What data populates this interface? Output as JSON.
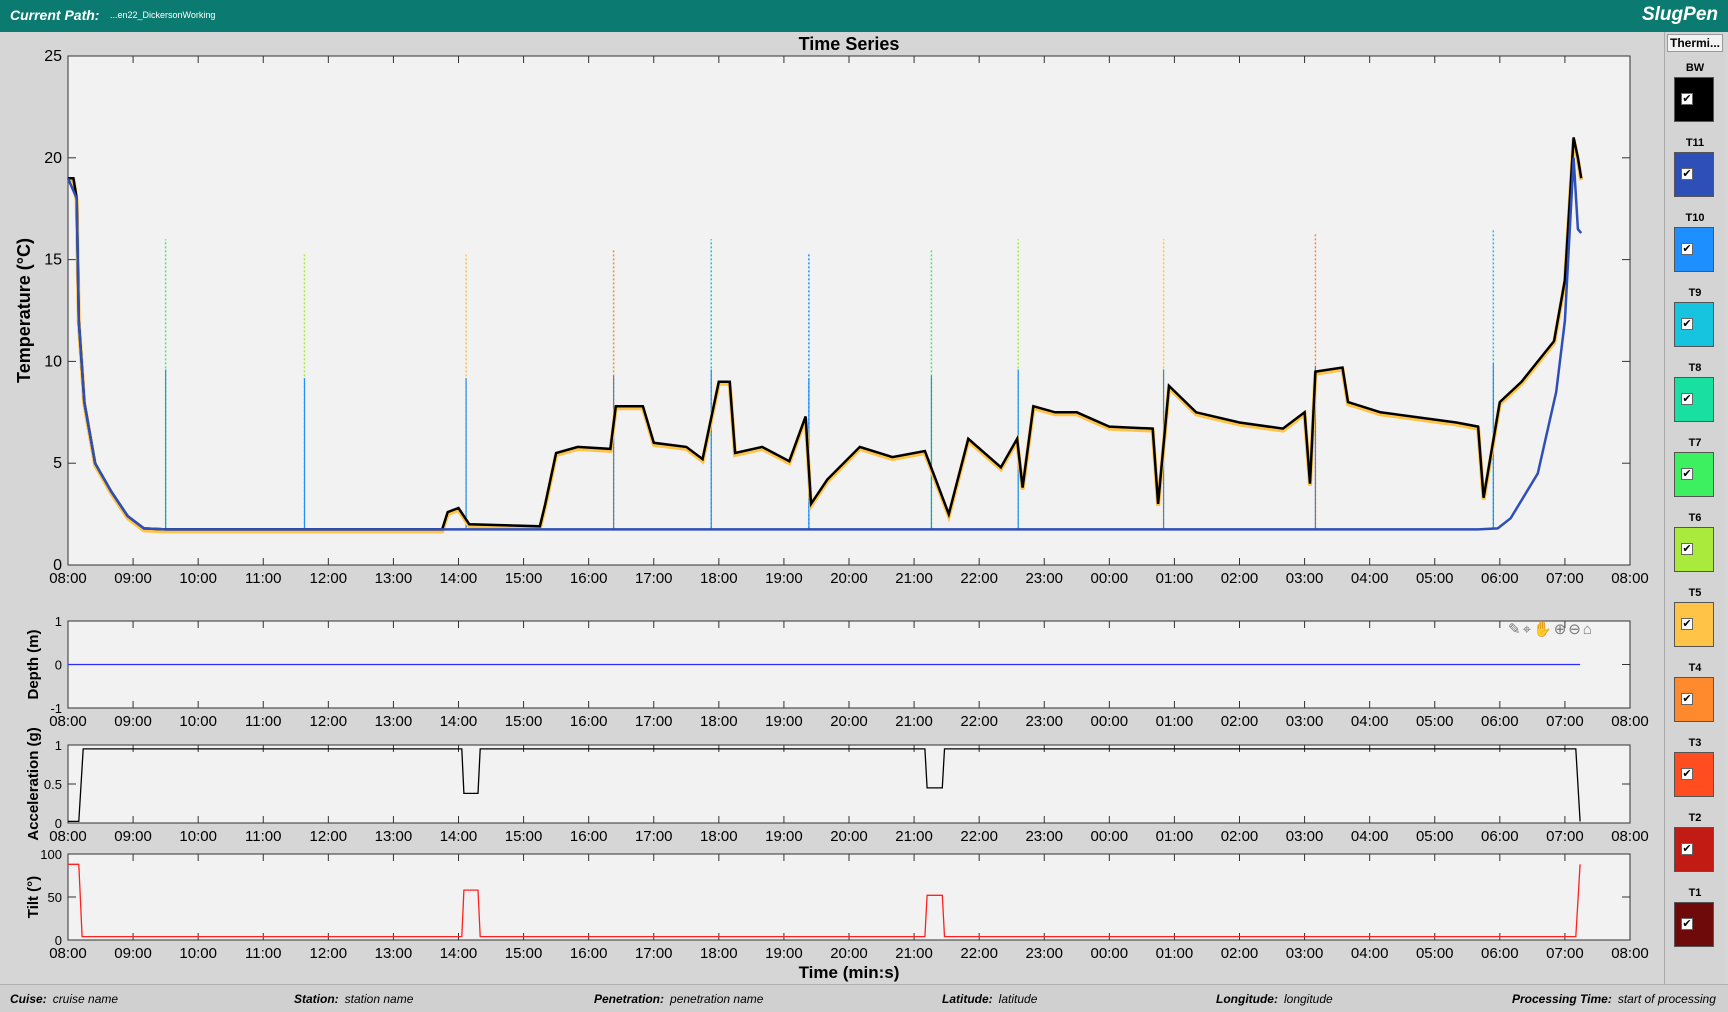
{
  "header": {
    "path_label": "Current Path:",
    "path_value": "...en22_DickersonWorking",
    "app_name": "SlugPen"
  },
  "legend": {
    "title": "Thermi...",
    "items": [
      {
        "name": "BW",
        "color": "#000000",
        "checked": true
      },
      {
        "name": "T11",
        "color": "#2e4fb8",
        "checked": true
      },
      {
        "name": "T10",
        "color": "#1e8fff",
        "checked": true
      },
      {
        "name": "T9",
        "color": "#16c4e0",
        "checked": true
      },
      {
        "name": "T8",
        "color": "#17e0a0",
        "checked": true
      },
      {
        "name": "T7",
        "color": "#3cf060",
        "checked": true
      },
      {
        "name": "T6",
        "color": "#a9ea3c",
        "checked": true
      },
      {
        "name": "T5",
        "color": "#ffc347",
        "checked": true
      },
      {
        "name": "T4",
        "color": "#ff8a2e",
        "checked": true
      },
      {
        "name": "T3",
        "color": "#ff4d1f",
        "checked": true
      },
      {
        "name": "T2",
        "color": "#c21b14",
        "checked": true
      },
      {
        "name": "T1",
        "color": "#6e0a0a",
        "checked": true
      }
    ]
  },
  "footer": {
    "cruise_label": "Cuise:",
    "cruise_value": "cruise name",
    "station_label": "Station:",
    "station_value": "station name",
    "penetration_label": "Penetration:",
    "penetration_value": "penetration name",
    "latitude_label": "Latitude:",
    "latitude_value": "latitude",
    "longitude_label": "Longitude:",
    "longitude_value": "longitude",
    "processing_label": "Processing Time:",
    "processing_value": "start of processing"
  },
  "chart_data": [
    {
      "type": "line",
      "title": "Time Series",
      "xlabel": "",
      "ylabel": "Temperature  (°C)",
      "xlim": [
        0,
        1440
      ],
      "ylim": [
        0,
        25
      ],
      "yticks": [
        0,
        5,
        10,
        15,
        20,
        25
      ],
      "xticklabels": [
        "08:00",
        "09:00",
        "10:00",
        "11:00",
        "12:00",
        "13:00",
        "14:00",
        "15:00",
        "16:00",
        "17:00",
        "18:00",
        "19:00",
        "20:00",
        "21:00",
        "22:00",
        "23:00",
        "00:00",
        "01:00",
        "02:00",
        "03:00",
        "04:00",
        "05:00",
        "06:00",
        "07:00",
        "08:00"
      ],
      "series": [
        {
          "name": "BW",
          "color": "#000000",
          "points": [
            [
              0,
              19
            ],
            [
              5,
              19
            ],
            [
              8,
              18
            ],
            [
              10,
              12
            ],
            [
              15,
              8
            ],
            [
              25,
              5
            ],
            [
              40,
              3.6
            ],
            [
              55,
              2.4
            ],
            [
              70,
              1.8
            ],
            [
              90,
              1.75
            ],
            [
              345,
              1.75
            ],
            [
              350,
              2.6
            ],
            [
              360,
              2.8
            ],
            [
              370,
              2.0
            ],
            [
              435,
              1.9
            ],
            [
              440,
              3
            ],
            [
              450,
              5.5
            ],
            [
              470,
              5.8
            ],
            [
              500,
              5.7
            ],
            [
              505,
              7.8
            ],
            [
              530,
              7.8
            ],
            [
              540,
              6.0
            ],
            [
              570,
              5.8
            ],
            [
              585,
              5.2
            ],
            [
              600,
              9.0
            ],
            [
              610,
              9.0
            ],
            [
              615,
              5.5
            ],
            [
              640,
              5.8
            ],
            [
              665,
              5.1
            ],
            [
              680,
              7.3
            ],
            [
              685,
              3.0
            ],
            [
              700,
              4.2
            ],
            [
              730,
              5.8
            ],
            [
              760,
              5.3
            ],
            [
              790,
              5.6
            ],
            [
              812,
              2.5
            ],
            [
              830,
              6.2
            ],
            [
              860,
              4.8
            ],
            [
              875,
              6.2
            ],
            [
              880,
              3.8
            ],
            [
              890,
              7.8
            ],
            [
              910,
              7.5
            ],
            [
              930,
              7.5
            ],
            [
              960,
              6.8
            ],
            [
              1000,
              6.7
            ],
            [
              1005,
              3.0
            ],
            [
              1015,
              8.8
            ],
            [
              1040,
              7.5
            ],
            [
              1080,
              7.0
            ],
            [
              1120,
              6.7
            ],
            [
              1140,
              7.5
            ],
            [
              1145,
              4.0
            ],
            [
              1150,
              9.5
            ],
            [
              1175,
              9.7
            ],
            [
              1180,
              8.0
            ],
            [
              1210,
              7.5
            ],
            [
              1280,
              7.0
            ],
            [
              1300,
              6.8
            ],
            [
              1305,
              3.3
            ],
            [
              1320,
              8.0
            ],
            [
              1340,
              9.0
            ],
            [
              1370,
              11
            ],
            [
              1380,
              14
            ],
            [
              1388,
              21
            ],
            [
              1392,
              20
            ],
            [
              1395,
              19
            ]
          ]
        },
        {
          "name": "T11",
          "color": "#2e4fb8",
          "points": [
            [
              0,
              19
            ],
            [
              8,
              18
            ],
            [
              10,
              12
            ],
            [
              15,
              8
            ],
            [
              25,
              5
            ],
            [
              40,
              3.6
            ],
            [
              55,
              2.4
            ],
            [
              70,
              1.8
            ],
            [
              90,
              1.75
            ],
            [
              1300,
              1.75
            ],
            [
              1318,
              1.8
            ],
            [
              1330,
              2.3
            ],
            [
              1355,
              4.5
            ],
            [
              1372,
              8.5
            ],
            [
              1380,
              12
            ],
            [
              1388,
              20
            ],
            [
              1392,
              16.5
            ],
            [
              1395,
              16.3
            ]
          ]
        }
      ],
      "spikes": [
        [
          90,
          16
        ],
        [
          218,
          15.3
        ],
        [
          367,
          15.3
        ],
        [
          503,
          15.5
        ],
        [
          593,
          16
        ],
        [
          683,
          15.3
        ],
        [
          796,
          15.5
        ],
        [
          876,
          16
        ],
        [
          1010,
          16
        ],
        [
          1150,
          16.3
        ],
        [
          1314,
          16.5
        ]
      ]
    },
    {
      "type": "line",
      "title": "",
      "ylabel": "Depth (m)",
      "xlim": [
        0,
        1440
      ],
      "ylim": [
        -1,
        1
      ],
      "yticks": [
        -1,
        0,
        1
      ],
      "series": [
        {
          "name": "",
          "color": "#2c2cff",
          "points": [
            [
              0,
              0
            ],
            [
              1394,
              0
            ]
          ]
        }
      ]
    },
    {
      "type": "line",
      "title": "",
      "ylabel": "Acceleration (g)",
      "xlim": [
        0,
        1440
      ],
      "ylim": [
        0,
        1
      ],
      "yticks": [
        0,
        0.5,
        1
      ],
      "series": [
        {
          "name": "",
          "color": "#000000",
          "points": [
            [
              0,
              0.02
            ],
            [
              10,
              0.02
            ],
            [
              14,
              0.95
            ],
            [
              363,
              0.95
            ],
            [
              365,
              0.38
            ],
            [
              378,
              0.38
            ],
            [
              380,
              0.95
            ],
            [
              790,
              0.95
            ],
            [
              792,
              0.45
            ],
            [
              806,
              0.45
            ],
            [
              808,
              0.95
            ],
            [
              1390,
              0.95
            ],
            [
              1394,
              0.02
            ]
          ]
        }
      ]
    },
    {
      "type": "line",
      "title": "",
      "xlabel": "Time (min:s)",
      "ylabel": "Tilt (°)",
      "xlim": [
        0,
        1440
      ],
      "ylim": [
        0,
        100
      ],
      "yticks": [
        0,
        50,
        100
      ],
      "series": [
        {
          "name": "",
          "color": "#ff2020",
          "points": [
            [
              0,
              88
            ],
            [
              10,
              88
            ],
            [
              13,
              4
            ],
            [
              363,
              4
            ],
            [
              365,
              58
            ],
            [
              378,
              58
            ],
            [
              380,
              4
            ],
            [
              790,
              4
            ],
            [
              792,
              52
            ],
            [
              806,
              52
            ],
            [
              808,
              4
            ],
            [
              1390,
              4
            ],
            [
              1394,
              88
            ]
          ]
        }
      ]
    }
  ]
}
